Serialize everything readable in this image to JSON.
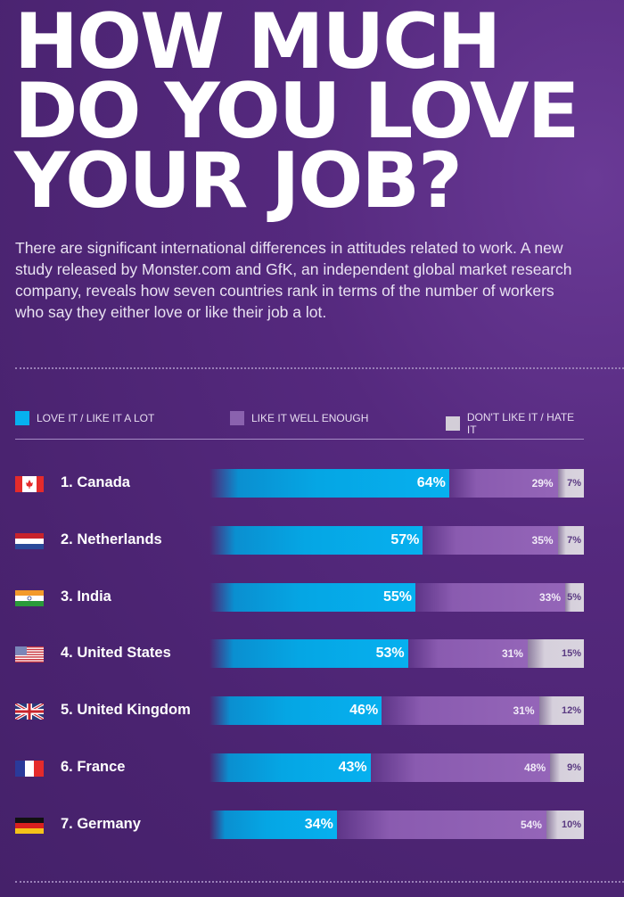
{
  "title_lines": [
    "HOW MUCH",
    "DO YOU LOVE",
    "YOUR JOB?"
  ],
  "intro_lines": [
    "There are significant international differences in attitudes related to work. A new",
    "study released by Monster.com and GfK, an independent global market research",
    "company, reveals how seven countries rank in terms of the number of workers",
    "who say they either love or like their job a lot."
  ],
  "chart_data": {
    "type": "bar",
    "stacked": true,
    "orientation": "horizontal",
    "title": "HOW MUCH DO YOU LOVE YOUR JOB?",
    "categories": [
      "1. Canada",
      "2. Netherlands",
      "3. India",
      "4. United States",
      "5. United Kingdom",
      "6. France",
      "7. Germany"
    ],
    "flags": [
      "canada",
      "netherlands",
      "india",
      "united-states",
      "united-kingdom",
      "france",
      "germany"
    ],
    "series": [
      {
        "name": "LOVE IT / LIKE IT A LOT",
        "color": "#06b0ef",
        "values": [
          64,
          57,
          55,
          53,
          46,
          43,
          34
        ]
      },
      {
        "name": "LIKE IT WELL ENOUGH",
        "color": "#9465b8",
        "values": [
          29,
          35,
          33,
          31,
          31,
          48,
          54
        ]
      },
      {
        "name": "DON'T LIKE IT / HATE IT",
        "color": "#d9d4de",
        "values": [
          7,
          7,
          5,
          15,
          12,
          9,
          10
        ]
      }
    ],
    "value_suffix": "%",
    "xlim": [
      0,
      100
    ],
    "legend_position": "top"
  }
}
